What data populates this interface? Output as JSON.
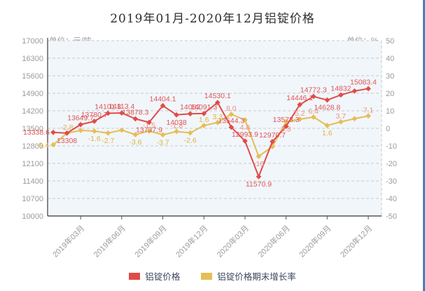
{
  "title": "2019年01月-2020年12月铝锭价格",
  "left_axis": {
    "unit": "单位：元/吨",
    "ticks": [
      17000,
      16300,
      15600,
      14900,
      14200,
      13500,
      12800,
      12100,
      11400,
      10700,
      10000
    ],
    "min": 10000,
    "max": 17000
  },
  "right_axis": {
    "unit": "单位：%",
    "ticks": [
      50,
      40,
      30,
      20,
      10,
      0,
      -10,
      -20,
      -30,
      -40,
      -50
    ],
    "min": -50,
    "max": 50
  },
  "x_axis": {
    "tick_labels": [
      "2019年03月",
      "2019年06月",
      "2019年09月",
      "2019年12月",
      "2020年03月",
      "2020年06月",
      "2020年09月",
      "2020年12月"
    ],
    "tick_indices": [
      2,
      5,
      8,
      11,
      14,
      17,
      20,
      23
    ]
  },
  "legend": [
    {
      "label": "铝锭价格",
      "color": "#e14b47"
    },
    {
      "label": "铝锭价格期末增长率",
      "color": "#e5be55"
    }
  ],
  "colors": {
    "price_line": "#e14b47",
    "price_label": "#e05555",
    "growth_line": "#e5be55",
    "growth_label_yellow": "#e0b23e",
    "growth_label_salmon": "#ef9080",
    "grid": "#c9c9c9",
    "axis": "#555555",
    "tick_text": "#9b9b9b",
    "plot_bg": "#f1f6fb"
  },
  "chart_data": {
    "type": "line",
    "categories": [
      "2019年01月",
      "2019年02月",
      "2019年03月",
      "2019年04月",
      "2019年05月",
      "2019年06月",
      "2019年07月",
      "2019年08月",
      "2019年09月",
      "2019年10月",
      "2019年11月",
      "2019年12月",
      "2020年01月",
      "2020年02月",
      "2020年03月",
      "2020年04月",
      "2020年05月",
      "2020年06月",
      "2020年07月",
      "2020年08月",
      "2020年09月",
      "2020年10月",
      "2020年11月",
      "2020年12月"
    ],
    "series": [
      {
        "name": "铝锭价格",
        "axis": "left",
        "values": [
          13338.6,
          13308,
          13649.7,
          13780.7,
          14101.8,
          14113.4,
          13878.3,
          13737.9,
          14404.1,
          14038,
          14082,
          14091.3,
          14530.1,
          13544.3,
          12993.9,
          11570.9,
          12970.7,
          13578.3,
          14446.1,
          14772.3,
          14628.8,
          14832,
          14990,
          15083.4
        ],
        "labels": [
          "13338.6",
          "13308",
          "13649.7",
          "13780.7",
          "14101.8",
          "14113.4",
          "13878.3",
          "13737.9",
          "14404.1",
          "14038",
          "14082",
          "14091.3",
          "14530.1",
          "13544.3",
          "12993.9",
          "11570.9",
          "12970.7",
          "13578.3",
          "14446.1",
          "14772.3",
          "14628.8",
          "14832",
          "",
          "15083.4"
        ]
      },
      {
        "name": "铝锭价格期末增长率",
        "axis": "right",
        "values": [
          -9.4,
          -2.8,
          -1.2,
          -1.6,
          -2.7,
          -1.0,
          -3.6,
          -1.5,
          -3.7,
          -1.8,
          -2.6,
          1.6,
          3.3,
          8.0,
          4.8,
          -16,
          -10.4,
          3.8,
          5.2,
          6.4,
          1.6,
          3.7,
          5.5,
          7.1
        ],
        "labels": [
          "-9.4",
          "-2.8",
          "",
          "-1.6",
          "-2.7",
          "",
          "-3.6",
          "-1.5",
          "-3.7",
          "-1.8",
          "-2.6",
          "1.6",
          "3.3",
          "8.0",
          "4.8",
          "-16",
          "",
          "3.8",
          "5.2",
          "6.4",
          "1.6",
          "3.7",
          "",
          "7.1"
        ]
      }
    ],
    "left_range": [
      10000,
      17000
    ],
    "right_range": [
      -50,
      50
    ],
    "grid": "dashed-horizontal",
    "legend_position": "bottom"
  }
}
